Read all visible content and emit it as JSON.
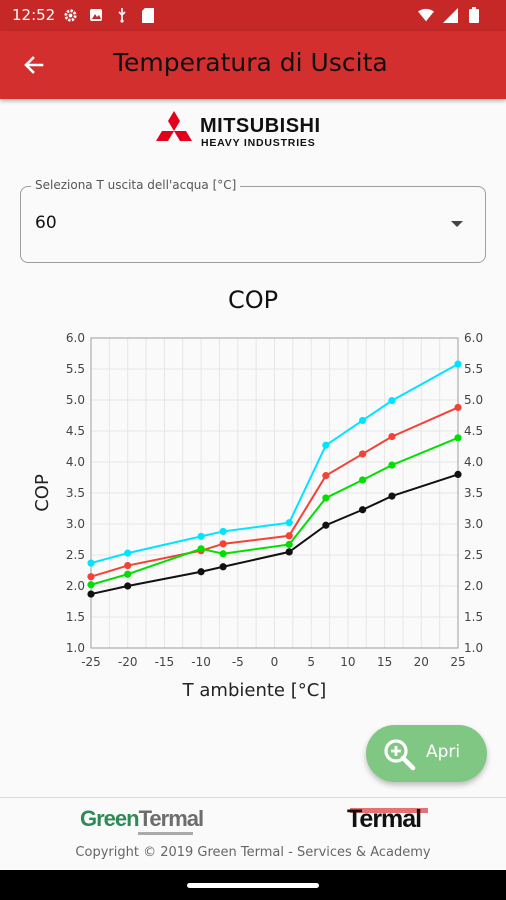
{
  "status_bar": {
    "time": "12:52"
  },
  "app_bar": {
    "title": "Temperatura di Uscita"
  },
  "brand": {
    "line1": "MITSUBISHI",
    "line2": "HEAVY INDUSTRIES"
  },
  "selector": {
    "label": "Seleziona T uscita dell'acqua [°C]",
    "value": "60"
  },
  "fab": {
    "label": "Apri"
  },
  "footer": {
    "green_part": "Green",
    "termal_part": "Termal",
    "termal_logo": "Termal",
    "copyright": "Copyright © 2019 Green Termal - Services & Academy"
  },
  "colors": {
    "appbar": "#d32f2f",
    "statusbar": "#c62828",
    "fab": "#81c784"
  },
  "chart_data": {
    "type": "line",
    "title": "COP",
    "xlabel": "T ambiente [°C]",
    "ylabel": "COP",
    "xlim": [
      -25,
      25
    ],
    "ylim": [
      1.0,
      6.0
    ],
    "x_ticks": [
      -25,
      -20,
      -15,
      -10,
      -5,
      0,
      5,
      10,
      15,
      20,
      25
    ],
    "y_ticks": [
      1.0,
      1.5,
      2.0,
      2.5,
      3.0,
      3.5,
      4.0,
      4.5,
      5.0,
      5.5,
      6.0
    ],
    "x_tick_labels": [
      "-25",
      "-20",
      "-15",
      "-10",
      "-5",
      "0",
      "5",
      "10",
      "15",
      "20",
      "25"
    ],
    "y_tick_labels": [
      "1.0",
      "1.5",
      "2.0",
      "2.5",
      "3.0",
      "3.5",
      "4.0",
      "4.5",
      "5.0",
      "5.5",
      "6.0"
    ],
    "grid": true,
    "x": [
      -25,
      -20,
      -10,
      -7,
      2,
      7,
      12,
      16,
      25
    ],
    "series": [
      {
        "color": "#00e5ff",
        "values": [
          2.37,
          2.53,
          2.8,
          2.88,
          3.02,
          4.27,
          4.67,
          4.99,
          5.58
        ]
      },
      {
        "color": "#f44336",
        "values": [
          2.15,
          2.33,
          2.57,
          2.68,
          2.81,
          3.78,
          4.13,
          4.41,
          4.88
        ]
      },
      {
        "color": "#00e000",
        "values": [
          2.02,
          2.19,
          2.6,
          2.52,
          2.67,
          3.42,
          3.71,
          3.95,
          4.39
        ]
      },
      {
        "color": "#111111",
        "values": [
          1.87,
          2.0,
          2.23,
          2.31,
          2.55,
          2.98,
          3.23,
          3.45,
          3.8
        ]
      }
    ]
  }
}
